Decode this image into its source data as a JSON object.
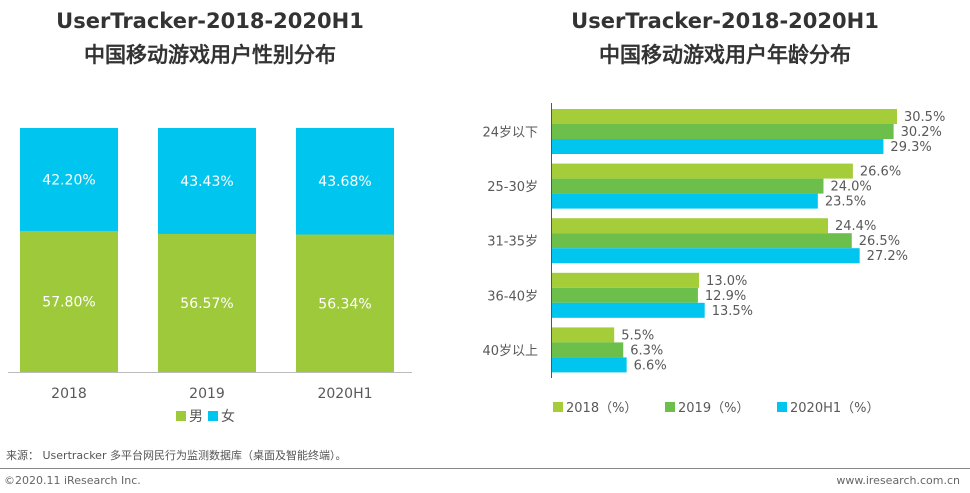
{
  "chart_data": [
    {
      "type": "bar",
      "stacked": true,
      "title": "UserTracker-2018-2020H1",
      "subtitle": "中国移动游戏用户性别分布",
      "categories": [
        "2018",
        "2019",
        "2020H1"
      ],
      "series": [
        {
          "name": "男",
          "values": [
            57.8,
            56.57,
            56.34
          ],
          "labels": [
            "57.80%",
            "56.57%",
            "56.34%"
          ],
          "color": "#9dc93b"
        },
        {
          "name": "女",
          "values": [
            42.2,
            43.43,
            43.68
          ],
          "labels": [
            "42.20%",
            "43.43%",
            "43.68%"
          ],
          "color": "#00c5ef"
        }
      ],
      "ylim": [
        0,
        100
      ],
      "grid": false,
      "legend": "bottom"
    },
    {
      "type": "bar",
      "orientation": "horizontal",
      "title": "UserTracker-2018-2020H1",
      "subtitle": "中国移动游戏用户年龄分布",
      "categories": [
        "24岁以下",
        "25-30岁",
        "31-35岁",
        "36-40岁",
        "40岁以上"
      ],
      "series": [
        {
          "name": "2018（%）",
          "values": [
            30.5,
            26.6,
            24.4,
            13.0,
            5.5
          ],
          "color": "#a5cd39"
        },
        {
          "name": "2019（%）",
          "values": [
            30.2,
            24.0,
            26.5,
            12.9,
            6.3
          ],
          "color": "#6cbf4a"
        },
        {
          "name": "2020H1（%）",
          "values": [
            29.3,
            23.5,
            27.2,
            13.5,
            6.6
          ],
          "color": "#00c5ef"
        }
      ],
      "grid": false,
      "legend": "bottom"
    }
  ],
  "footer": {
    "source": "来源： Usertracker 多平台网民行为监测数据库（桌面及智能终端）。",
    "copyright": "©2020.11 iResearch Inc.",
    "website": "www.iresearch.com.cn"
  }
}
